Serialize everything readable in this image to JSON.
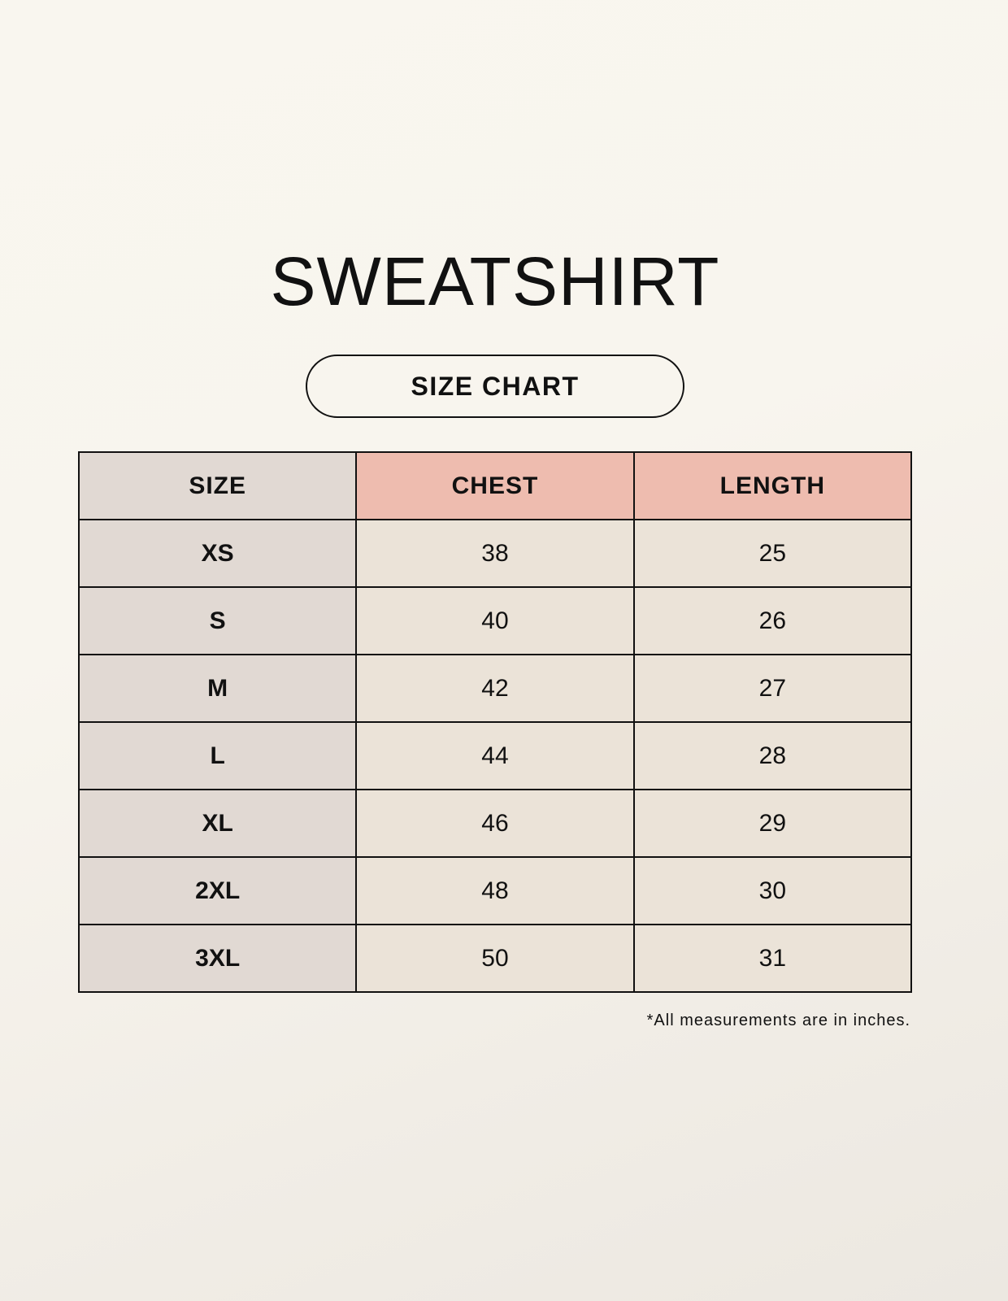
{
  "title": "SWEATSHIRT",
  "subtitle": "SIZE CHART",
  "colors": {
    "size_column": "#e1d9d3",
    "header_accent": "#eebcaf",
    "cell": "#ebe3d8"
  },
  "table": {
    "headers": [
      "SIZE",
      "CHEST",
      "LENGTH"
    ],
    "rows": [
      [
        "XS",
        "38",
        "25"
      ],
      [
        "S",
        "40",
        "26"
      ],
      [
        "M",
        "42",
        "27"
      ],
      [
        "L",
        "44",
        "28"
      ],
      [
        "XL",
        "46",
        "29"
      ],
      [
        "2XL",
        "48",
        "30"
      ],
      [
        "3XL",
        "50",
        "31"
      ]
    ]
  },
  "note": "*All measurements are in inches."
}
